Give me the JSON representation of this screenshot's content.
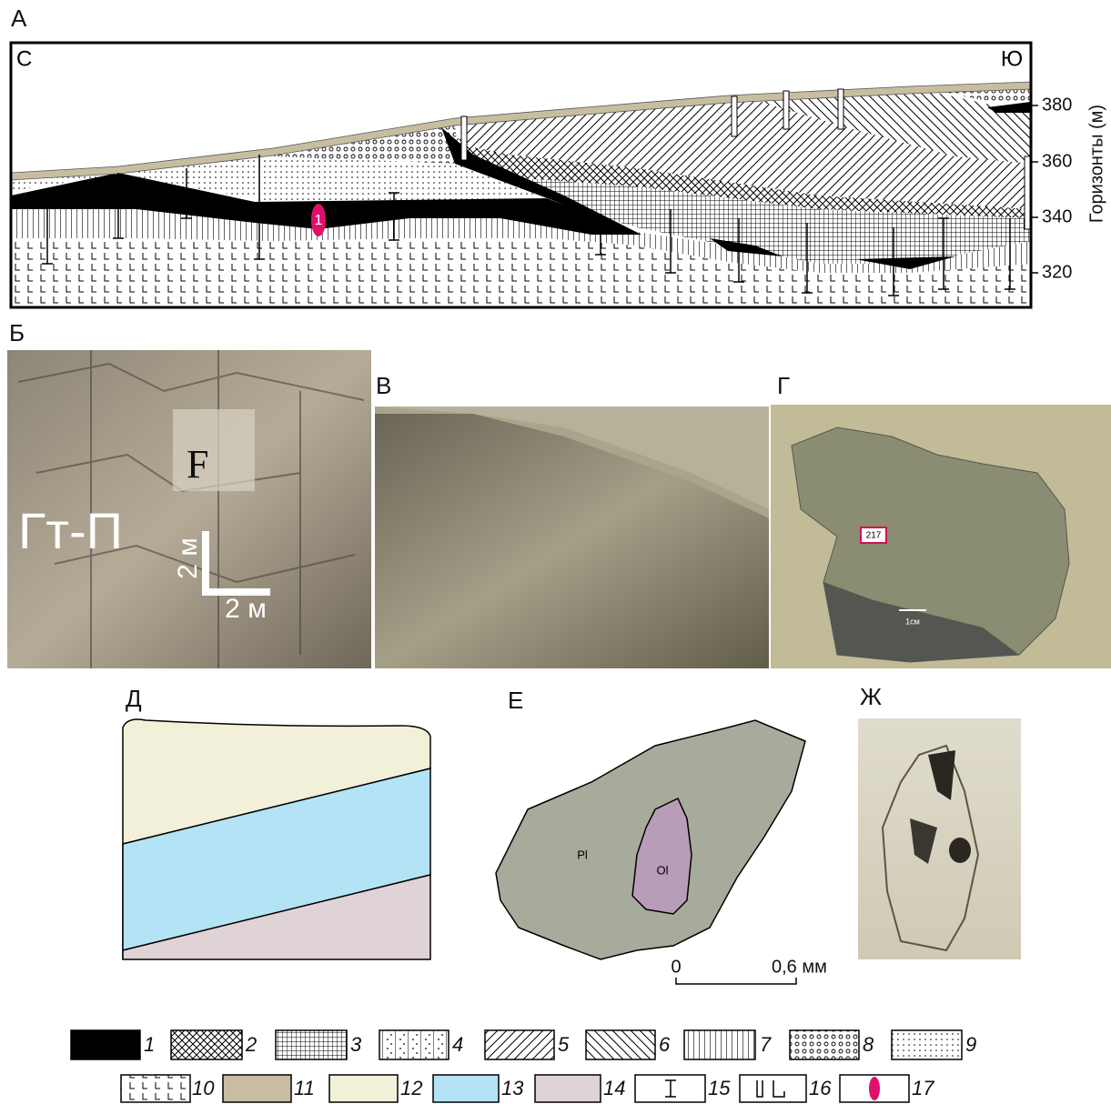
{
  "panel_labels": [
    "А",
    "Б",
    "В",
    "Г",
    "Д",
    "Е",
    "Ж"
  ],
  "section": {
    "left": "С",
    "right": "Ю",
    "axis_label": "Горизонты (м)",
    "ticks": [
      380,
      360,
      340,
      320
    ],
    "marker": "1"
  },
  "photo_b": {
    "rock": "Гт-П",
    "symbol": "F",
    "scale_v": "2 м",
    "scale_h": "2 м"
  },
  "photo_g": {
    "sample": "217",
    "scale": "1см"
  },
  "sketch_e": {
    "pl": "Pl",
    "ol": "Ol",
    "scale_start": "0",
    "scale_end": "0,6 мм"
  },
  "legend": [
    "1",
    "2",
    "3",
    "4",
    "5",
    "6",
    "7",
    "8",
    "9",
    "10",
    "11",
    "12",
    "13",
    "14",
    "15",
    "16",
    "17"
  ]
}
